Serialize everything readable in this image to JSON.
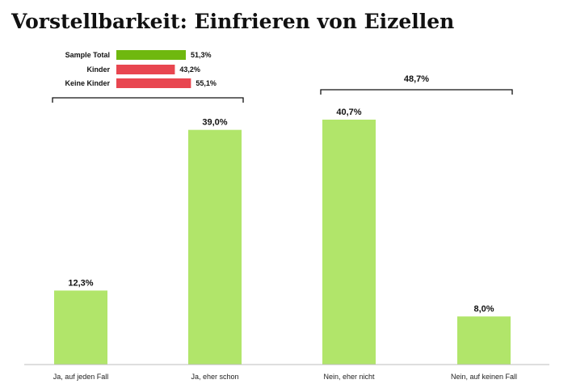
{
  "chart_data": {
    "type": "bar",
    "title": "Vorstellbarkeit: Einfrieren von Eizellen",
    "categories": [
      "Ja, auf jeden Fall",
      "Ja, eher schon",
      "Nein, eher nicht",
      "Nein, auf keinen Fall"
    ],
    "values": [
      12.3,
      39.0,
      40.7,
      8.0
    ],
    "value_labels": [
      "12,3%",
      "39,0%",
      "40,7%",
      "8,0%"
    ],
    "ylim": [
      0,
      40.7
    ],
    "grid": false,
    "bar_color": "#b1e56a",
    "brackets": [
      {
        "from": 0,
        "to": 1,
        "label": ""
      },
      {
        "from": 2,
        "to": 3,
        "label": "48,7%"
      }
    ],
    "inset": {
      "items": [
        {
          "label": "Sample Total",
          "value": 51.3,
          "value_label": "51,3%",
          "color": "#6fb80f"
        },
        {
          "label": "Kinder",
          "value": 43.2,
          "value_label": "43,2%",
          "color": "#e84650"
        },
        {
          "label": "Keine Kinder",
          "value": 55.1,
          "value_label": "55,1%",
          "color": "#e84650"
        }
      ]
    }
  }
}
